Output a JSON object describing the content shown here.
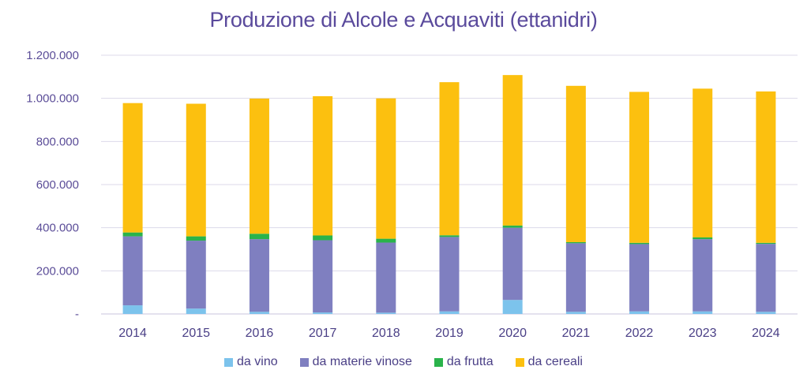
{
  "chart_data": {
    "type": "bar",
    "stacked": true,
    "title": "Produzione di Alcole e Acquaviti (ettanidri)",
    "xlabel": "",
    "ylabel": "",
    "ylim": [
      0,
      1200000
    ],
    "yticks": [
      {
        "value": 0,
        "label": "-"
      },
      {
        "value": 200000,
        "label": "200.000"
      },
      {
        "value": 400000,
        "label": "400.000"
      },
      {
        "value": 600000,
        "label": "600.000"
      },
      {
        "value": 800000,
        "label": "800.000"
      },
      {
        "value": 1000000,
        "label": "1.000.000"
      },
      {
        "value": 1200000,
        "label": "1.200.000"
      }
    ],
    "grid": true,
    "legend_position": "bottom",
    "categories": [
      "2014",
      "2015",
      "2016",
      "2017",
      "2018",
      "2019",
      "2020",
      "2021",
      "2022",
      "2023",
      "2024"
    ],
    "series": [
      {
        "name": "da vino",
        "color": "#7cc3ec",
        "values": [
          40000,
          25000,
          10000,
          7000,
          6000,
          12000,
          65000,
          10000,
          12000,
          12000,
          10000
        ]
      },
      {
        "name": "da materie vinose",
        "color": "#7f7fc0",
        "values": [
          320000,
          315000,
          337000,
          335000,
          325000,
          345000,
          335000,
          318000,
          312000,
          335000,
          315000
        ]
      },
      {
        "name": "da frutta",
        "color": "#2ab34b",
        "values": [
          18000,
          20000,
          25000,
          22000,
          18000,
          8000,
          10000,
          5000,
          6000,
          8000,
          5000
        ]
      },
      {
        "name": "da cereali",
        "color": "#fcc00f",
        "values": [
          600000,
          615000,
          627000,
          646000,
          651000,
          710000,
          698000,
          725000,
          700000,
          690000,
          702000
        ]
      }
    ]
  }
}
